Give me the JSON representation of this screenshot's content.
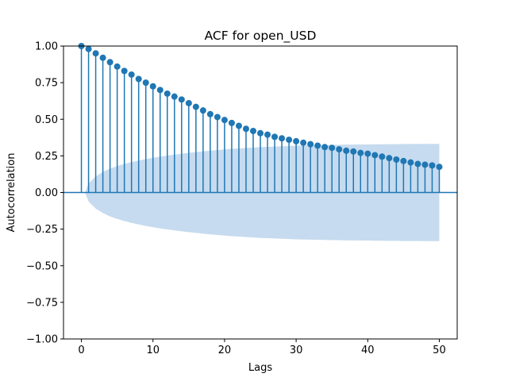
{
  "chart_data": {
    "type": "stem",
    "title": "ACF for open_USD",
    "xlabel": "Lags",
    "ylabel": "Autocorrelation",
    "xlim": [
      -2.5,
      52.5
    ],
    "ylim": [
      -1.0,
      1.0
    ],
    "xticks": [
      0,
      10,
      20,
      30,
      40,
      50
    ],
    "yticks": [
      -1.0,
      -0.75,
      -0.5,
      -0.25,
      0.0,
      0.25,
      0.5,
      0.75,
      1.0
    ],
    "xtick_labels": [
      "0",
      "10",
      "20",
      "30",
      "40",
      "50"
    ],
    "ytick_labels": [
      "−1.00",
      "−0.75",
      "−0.50",
      "−0.25",
      "0.00",
      "0.25",
      "0.50",
      "0.75",
      "1.00"
    ],
    "grid": false,
    "lags": [
      0,
      1,
      2,
      3,
      4,
      5,
      6,
      7,
      8,
      9,
      10,
      11,
      12,
      13,
      14,
      15,
      16,
      17,
      18,
      19,
      20,
      21,
      22,
      23,
      24,
      25,
      26,
      27,
      28,
      29,
      30,
      31,
      32,
      33,
      34,
      35,
      36,
      37,
      38,
      39,
      40,
      41,
      42,
      43,
      44,
      45,
      46,
      47,
      48,
      49,
      50
    ],
    "acf": [
      1.0,
      0.98,
      0.95,
      0.92,
      0.89,
      0.86,
      0.83,
      0.805,
      0.775,
      0.75,
      0.725,
      0.7,
      0.675,
      0.655,
      0.635,
      0.61,
      0.585,
      0.56,
      0.535,
      0.515,
      0.495,
      0.475,
      0.455,
      0.435,
      0.42,
      0.405,
      0.395,
      0.38,
      0.37,
      0.36,
      0.35,
      0.34,
      0.33,
      0.32,
      0.31,
      0.305,
      0.295,
      0.285,
      0.28,
      0.27,
      0.265,
      0.255,
      0.245,
      0.235,
      0.225,
      0.215,
      0.205,
      0.195,
      0.19,
      0.185,
      0.175
    ],
    "confint_upper": [
      0.0,
      0.061,
      0.11,
      0.14,
      0.163,
      0.18,
      0.195,
      0.207,
      0.218,
      0.228,
      0.237,
      0.245,
      0.252,
      0.259,
      0.265,
      0.271,
      0.276,
      0.281,
      0.286,
      0.29,
      0.294,
      0.298,
      0.301,
      0.304,
      0.307,
      0.31,
      0.312,
      0.314,
      0.316,
      0.318,
      0.32,
      0.321,
      0.322,
      0.323,
      0.324,
      0.325,
      0.326,
      0.327,
      0.327,
      0.328,
      0.328,
      0.329,
      0.329,
      0.33,
      0.33,
      0.331,
      0.331,
      0.331,
      0.332,
      0.332,
      0.332
    ],
    "color": "#1f77b4",
    "band_color": "#c6dbef"
  }
}
